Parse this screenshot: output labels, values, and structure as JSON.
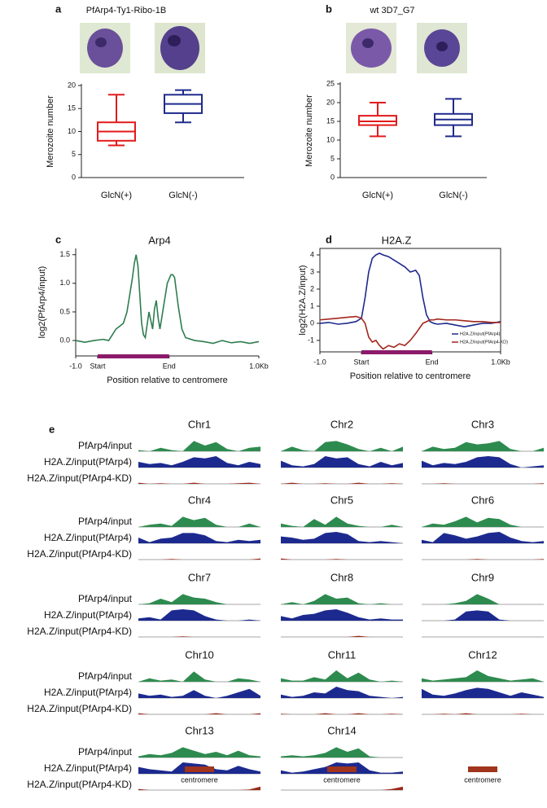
{
  "chart_data": [
    {
      "type": "box",
      "panel_label": "a",
      "title": "PfArp4-Ty1-Ribo-1B",
      "y_label": "Merozoite number",
      "categories": [
        "GlcN(+)",
        "GlcN(-)"
      ],
      "boxes": [
        {
          "min": 7,
          "q1": 8,
          "median": 10,
          "q3": 12,
          "max": 18,
          "color": "#e31a1c"
        },
        {
          "min": 12,
          "q1": 14,
          "median": 16,
          "q3": 18,
          "max": 19,
          "color": "#1f2a8c"
        }
      ],
      "ylim": [
        0,
        20
      ],
      "yticks": [
        0,
        5,
        10,
        15,
        20
      ]
    },
    {
      "type": "box",
      "panel_label": "b",
      "title": "wt 3D7_G7",
      "y_label": "Merozoite number",
      "categories": [
        "GlcN(+)",
        "GlcN(-)"
      ],
      "boxes": [
        {
          "min": 11,
          "q1": 14,
          "median": 15,
          "q3": 16.5,
          "max": 20,
          "color": "#e31a1c"
        },
        {
          "min": 11,
          "q1": 14,
          "median": 15.5,
          "q3": 17,
          "max": 21,
          "color": "#1f2a8c"
        }
      ],
      "ylim": [
        0,
        25
      ],
      "yticks": [
        0,
        5,
        10,
        15,
        20,
        25
      ]
    },
    {
      "type": "line",
      "panel_label": "c",
      "title": "Arp4",
      "y_label": "log2(PfArp4/input)",
      "x_label": "Position relative to centromere",
      "x": [
        0,
        5,
        10,
        15,
        18,
        20,
        22,
        24,
        26,
        28,
        30,
        31,
        32,
        33,
        34,
        35,
        36,
        37,
        38,
        40,
        42,
        43,
        44,
        45,
        46,
        48,
        50,
        52,
        53,
        54,
        56,
        58,
        60,
        65,
        70,
        75,
        80,
        85,
        90,
        95,
        100
      ],
      "series": [
        {
          "color": "#2e7d4f",
          "values": [
            0,
            -0.03,
            0,
            0.02,
            0.0,
            0.1,
            0.2,
            0.25,
            0.3,
            0.5,
            0.9,
            1.1,
            1.35,
            1.5,
            1.3,
            0.8,
            0.3,
            0.1,
            0.05,
            0.5,
            0.2,
            0.55,
            0.7,
            0.4,
            0.2,
            0.6,
            1.0,
            1.15,
            1.15,
            1.1,
            0.6,
            0.2,
            0.05,
            0.0,
            -0.02,
            -0.05,
            0,
            -0.04,
            -0.02,
            -0.05,
            -0.02
          ]
        }
      ],
      "xlim": [
        0,
        100
      ],
      "xticks": [
        {
          "value": 0,
          "label": "-1.0"
        },
        {
          "value": 12,
          "label": "Start"
        },
        {
          "value": 51,
          "label": "End"
        },
        {
          "value": 100,
          "label": "1.0Kb"
        }
      ],
      "ylim": [
        -0.27,
        1.61
      ],
      "yticks": [
        {
          "value": 0,
          "label": "0.0"
        },
        {
          "value": 0.5,
          "label": "0.5"
        },
        {
          "value": 1,
          "label": "1.0"
        },
        {
          "value": 1.5,
          "label": "1.5"
        }
      ],
      "frame": "axes",
      "region_color": "#8b1a6b"
    },
    {
      "type": "line",
      "panel_label": "d",
      "title": "H2A.Z",
      "y_label": "log2(H2A.Z/input)",
      "x_label": "Position relative to centromere",
      "x": [
        0,
        5,
        10,
        15,
        20,
        23,
        25,
        27,
        29,
        31,
        33,
        35,
        38,
        41,
        44,
        47,
        50,
        53,
        55,
        57,
        59,
        61,
        63,
        65,
        70,
        75,
        80,
        85,
        90,
        95,
        100
      ],
      "series": [
        {
          "name": "H2A.Z/input(PfArp4)",
          "color": "#1f2a8c",
          "values": [
            0,
            0.05,
            -0.05,
            0,
            0.1,
            0.3,
            1.5,
            3.0,
            3.8,
            4.0,
            4.1,
            4.0,
            3.9,
            3.7,
            3.5,
            3.3,
            3.0,
            3.1,
            2.8,
            1.5,
            0.5,
            0.1,
            0.0,
            -0.05,
            0,
            -0.1,
            -0.2,
            -0.1,
            0,
            0,
            0.1
          ]
        },
        {
          "name": "H2A.Z/input(PfArp4-KD)",
          "color": "#a3261c",
          "values": [
            0.2,
            0.25,
            0.3,
            0.35,
            0.4,
            0.3,
            0,
            -0.8,
            -1.1,
            -1.0,
            -1.3,
            -1.5,
            -1.3,
            -1.4,
            -1.2,
            -1.3,
            -1.0,
            -0.6,
            -0.3,
            0,
            0.1,
            0.2,
            0.2,
            0.25,
            0.2,
            0.2,
            0.15,
            0.1,
            0.1,
            0.05,
            0.05
          ]
        }
      ],
      "xlim": [
        0,
        100
      ],
      "xticks": [
        {
          "value": 0,
          "label": "-1.0"
        },
        {
          "value": 23,
          "label": "Start"
        },
        {
          "value": 62,
          "label": "End"
        },
        {
          "value": 100,
          "label": "1.0Kb"
        }
      ],
      "ylim": [
        -1.67,
        4.38
      ],
      "yticks": [
        -1,
        0,
        1,
        2,
        3,
        4
      ],
      "frame": "box",
      "legend": "lower right",
      "region_color": "#8b1a6b"
    },
    {
      "type": "track",
      "panel_label": "e",
      "centromere_label": "centromere",
      "centromere_color": "#a0341c",
      "tracks": [
        {
          "name": "PfArp4/input",
          "color": "#2e8b4f"
        },
        {
          "name": "H2A.Z/input(PfArp4)",
          "color": "#1c2a8f"
        },
        {
          "name": "H2A.Z/input(PfArp4-KD)",
          "color": "#9b2a1a"
        }
      ],
      "chromosomes": [
        {
          "name": "Chr1",
          "values": [
            [
              0.1,
              0,
              0.3,
              0.1,
              0,
              0.9,
              0.5,
              0.8,
              0.2,
              0,
              0.3,
              0.4
            ],
            [
              0.5,
              0.3,
              0.4,
              0.2,
              0.5,
              0.9,
              0.8,
              1,
              0.4,
              0.2,
              0.5,
              0.3
            ],
            [
              0.1,
              0,
              0.05,
              0,
              0,
              0.1,
              0,
              0,
              0,
              0.05,
              0.1,
              0
            ]
          ]
        },
        {
          "name": "Chr2",
          "values": [
            [
              0,
              0.4,
              0.1,
              0,
              0.8,
              0.9,
              0.6,
              0.2,
              0,
              0.3,
              0,
              0.4
            ],
            [
              0.6,
              0.2,
              0.1,
              0.3,
              1,
              0.8,
              0.9,
              0.3,
              0.1,
              0.5,
              0.2,
              0.4
            ],
            [
              0,
              0.1,
              0,
              0,
              0.05,
              0,
              0,
              0.1,
              0,
              0,
              0.05,
              0
            ]
          ]
        },
        {
          "name": "Chr3",
          "values": [
            [
              0,
              0.4,
              0.2,
              0.3,
              0.8,
              0.6,
              0.7,
              0.9,
              0.2,
              0,
              0,
              0.3
            ],
            [
              0.6,
              0.2,
              0.4,
              0.3,
              0.5,
              0.9,
              1,
              0.9,
              0.3,
              0,
              0.1,
              0.2
            ],
            [
              0,
              0,
              0.05,
              0,
              0,
              0,
              0,
              0,
              0,
              0,
              0,
              0.05
            ]
          ]
        },
        {
          "name": "Chr4",
          "values": [
            [
              0,
              0.2,
              0.3,
              0.1,
              0.9,
              0.6,
              0.8,
              0.2,
              0,
              0,
              0.3,
              0
            ],
            [
              0.5,
              0.1,
              0.4,
              0.5,
              0.9,
              0.9,
              0.7,
              0.2,
              0.1,
              0.3,
              0.2,
              0.3
            ],
            [
              0,
              0,
              0,
              0.05,
              0,
              0,
              0,
              0,
              0,
              0,
              0,
              0.1
            ]
          ]
        },
        {
          "name": "Chr5",
          "values": [
            [
              0.3,
              0.1,
              0,
              0.7,
              0.2,
              0.9,
              0.3,
              0.1,
              0,
              0,
              0.2,
              0
            ],
            [
              0.6,
              0.5,
              0.3,
              0.4,
              0.9,
              1,
              0.8,
              0.2,
              0.1,
              0.2,
              0.1,
              0
            ],
            [
              0.1,
              0,
              0,
              0,
              0,
              0.05,
              0,
              0,
              0,
              0,
              0,
              0
            ]
          ]
        },
        {
          "name": "Chr6",
          "values": [
            [
              0,
              0.3,
              0.2,
              0.5,
              0.9,
              0.4,
              0.8,
              0.7,
              0.2,
              0,
              0,
              0
            ],
            [
              0.3,
              0.1,
              0.9,
              0.7,
              0.4,
              0.6,
              0.9,
              1,
              0.5,
              0.2,
              0.1,
              0.2
            ],
            [
              0,
              0,
              0,
              0,
              0,
              0.05,
              0,
              0,
              0,
              0,
              0,
              0.05
            ]
          ]
        },
        {
          "name": "Chr7",
          "values": [
            [
              0,
              0.1,
              0.5,
              0.2,
              0.9,
              0.6,
              0.5,
              0.2,
              0,
              0,
              0,
              0
            ],
            [
              0.2,
              0.3,
              0.1,
              0.9,
              1,
              0.9,
              0.4,
              0.1,
              0,
              0,
              0.1,
              0
            ],
            [
              0,
              0,
              0,
              0,
              0.05,
              0,
              0,
              0,
              0,
              0,
              0,
              0
            ]
          ]
        },
        {
          "name": "Chr8",
          "values": [
            [
              0,
              0.2,
              0,
              0.3,
              0.9,
              0.5,
              0.6,
              0.1,
              0,
              0.1,
              0,
              0
            ],
            [
              0.4,
              0.2,
              0.5,
              0.6,
              0.9,
              1,
              0.7,
              0.3,
              0.1,
              0.2,
              0.1,
              0.1
            ],
            [
              0,
              0,
              0,
              0,
              0,
              0,
              0,
              0.1,
              0,
              0,
              0,
              0
            ]
          ]
        },
        {
          "name": "Chr9",
          "values": [
            [
              0,
              0,
              0,
              0.1,
              0.3,
              0.9,
              0.5,
              0,
              0,
              0,
              0,
              0
            ],
            [
              0,
              0,
              0,
              0.1,
              0.8,
              0.9,
              0.8,
              0.1,
              0,
              0,
              0,
              0
            ],
            [
              0,
              0,
              0,
              0,
              0,
              0,
              0,
              0,
              0,
              0,
              0,
              0
            ]
          ]
        },
        {
          "name": "Chr10",
          "values": [
            [
              0,
              0.3,
              0.1,
              0.2,
              0,
              0.9,
              0.2,
              0,
              0,
              0.3,
              0.2,
              0
            ],
            [
              0.4,
              0.2,
              0.3,
              0.1,
              0.2,
              0.7,
              0.2,
              0,
              0.2,
              0.5,
              0.8,
              0.2
            ],
            [
              0.1,
              0,
              0,
              0,
              0,
              0,
              0,
              0.1,
              0,
              0,
              0,
              0.1
            ]
          ]
        },
        {
          "name": "Chr11",
          "values": [
            [
              0.3,
              0.1,
              0.1,
              0.4,
              0.2,
              1,
              0.3,
              0.8,
              0.2,
              0,
              0.1,
              0
            ],
            [
              0.3,
              0.1,
              0.2,
              0.5,
              0.4,
              1,
              0.7,
              0.6,
              0.2,
              0.1,
              0,
              0.1
            ],
            [
              0.05,
              0,
              0,
              0,
              0.1,
              0,
              0,
              0.1,
              0,
              0,
              0.05,
              0
            ]
          ]
        },
        {
          "name": "Chr12",
          "values": [
            [
              0.3,
              0.1,
              0.2,
              0.3,
              0.4,
              1,
              0.5,
              0.3,
              0.1,
              0.2,
              0.3,
              0
            ],
            [
              0.8,
              0.3,
              0.2,
              0.4,
              0.7,
              0.9,
              0.8,
              0.5,
              0.2,
              0.5,
              0.3,
              0.1
            ],
            [
              0,
              0,
              0.05,
              0,
              0.1,
              0,
              0,
              0,
              0,
              0.05,
              0,
              0
            ]
          ]
        },
        {
          "name": "Chr13",
          "values": [
            [
              0.1,
              0.3,
              0.2,
              0.4,
              0.9,
              0.6,
              0.3,
              0.5,
              0.2,
              0.6,
              0.2,
              0.1
            ],
            [
              0.6,
              0.4,
              0.3,
              0.2,
              1,
              0.9,
              0.8,
              0.4,
              0.3,
              0.7,
              0.4,
              0.2
            ],
            [
              0.1,
              0,
              0,
              0,
              0,
              0,
              0,
              0,
              0,
              0,
              0.05,
              0.3
            ]
          ]
        },
        {
          "name": "Chr14",
          "values": [
            [
              0.1,
              0.2,
              0.1,
              0.2,
              0.4,
              0.9,
              0.5,
              0.8,
              0.1,
              0,
              0,
              0
            ],
            [
              0.3,
              0.1,
              0.2,
              0.4,
              0.6,
              1,
              0.9,
              1,
              0.3,
              0.1,
              0.1,
              0.2
            ],
            [
              0,
              0,
              0,
              0,
              0,
              0,
              0,
              0,
              0,
              0,
              0.1,
              0.3
            ]
          ]
        }
      ]
    }
  ]
}
